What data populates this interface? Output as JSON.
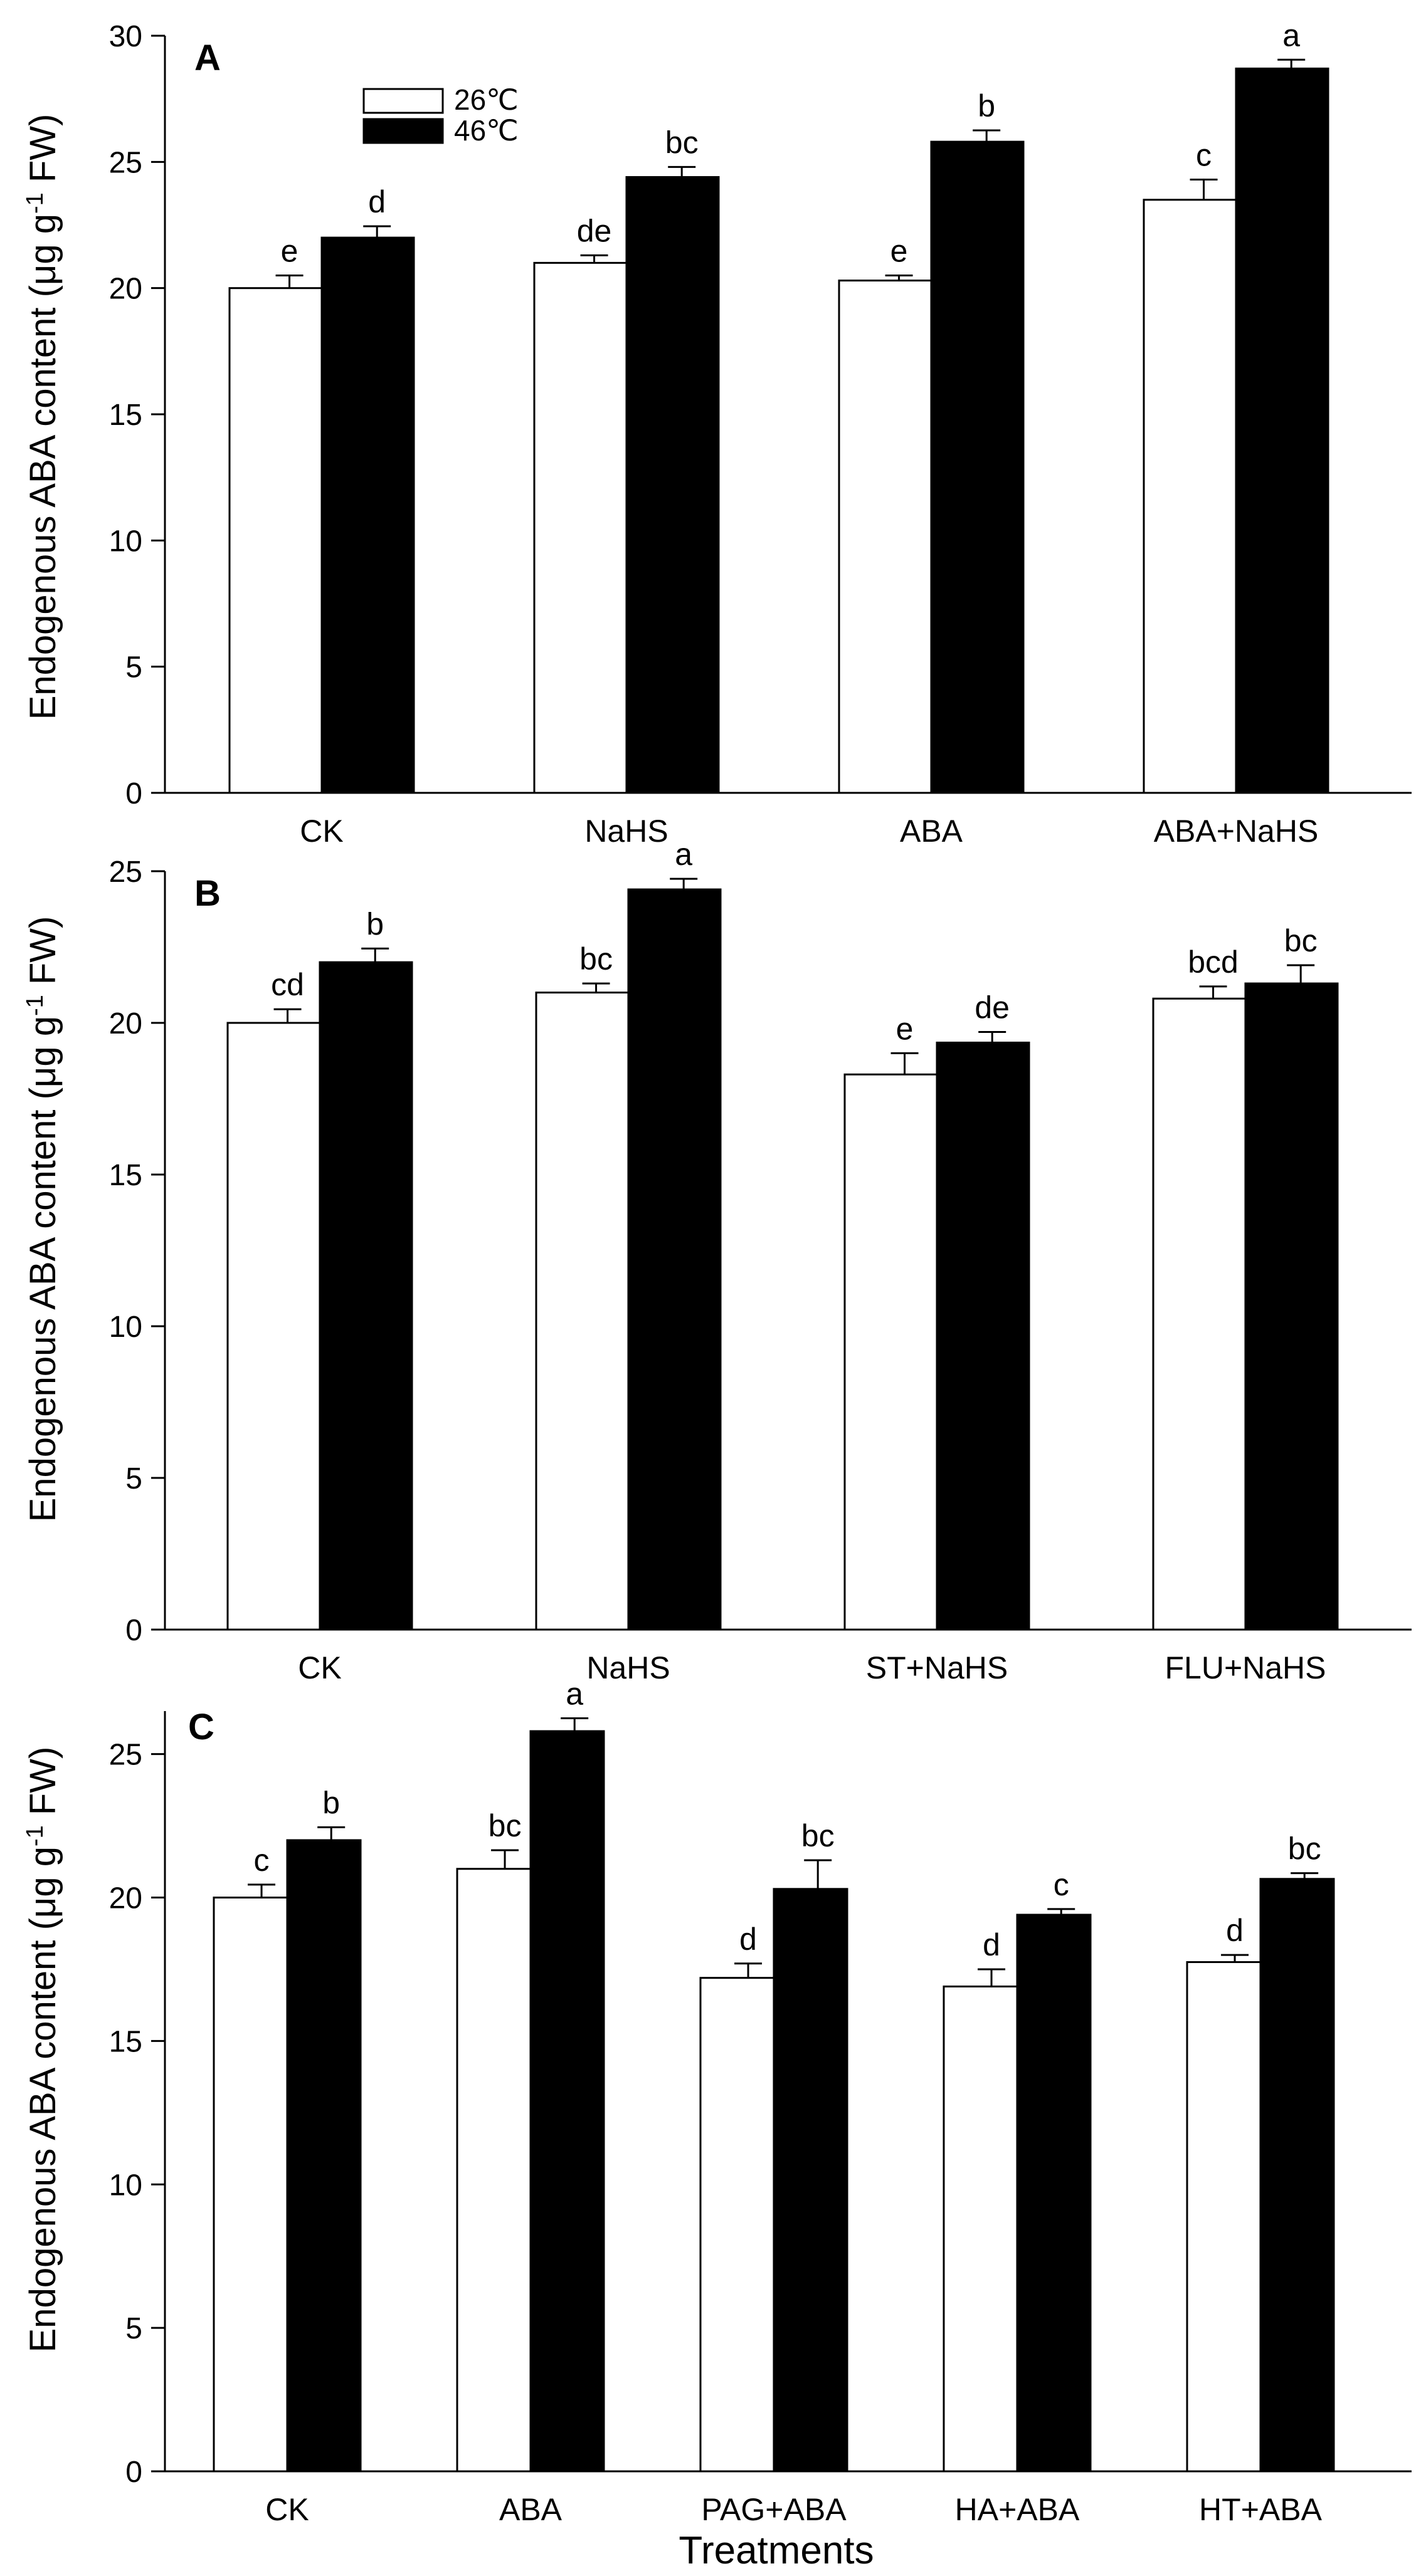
{
  "figure": {
    "xlabel": "Treatments",
    "legend": {
      "entries": [
        {
          "name": "26℃",
          "fill": "#ffffff"
        },
        {
          "name": "46℃",
          "fill": "#000000"
        }
      ],
      "placement": "top-left inside panel A"
    }
  },
  "chart_data": [
    {
      "type": "bar",
      "panel_label": "A",
      "title": "",
      "xlabel": "",
      "ylabel_prefix": "Endogenous ABA content (μg g",
      "ylabel_sup": "-1",
      "ylabel_suffix": " FW)",
      "ylim": [
        0,
        30
      ],
      "yticks": [
        0,
        5,
        10,
        15,
        20,
        25,
        30
      ],
      "categories": [
        "CK",
        "NaHS",
        "ABA",
        "ABA+NaHS"
      ],
      "series": [
        {
          "name": "26℃",
          "values": [
            20.0,
            21.0,
            20.3,
            23.5
          ],
          "errors": [
            0.5,
            0.3,
            0.2,
            0.8
          ],
          "letters": [
            "e",
            "de",
            "e",
            "c"
          ]
        },
        {
          "name": "46℃",
          "values": [
            22.0,
            24.4,
            25.8,
            28.7
          ],
          "errors": [
            0.45,
            0.4,
            0.45,
            0.35
          ],
          "letters": [
            "d",
            "bc",
            "b",
            "a"
          ]
        }
      ]
    },
    {
      "type": "bar",
      "panel_label": "B",
      "title": "",
      "xlabel": "",
      "ylabel_prefix": "Endogenous ABA content (μg g",
      "ylabel_sup": "-1",
      "ylabel_suffix": " FW)",
      "ylim": [
        0,
        25
      ],
      "yticks": [
        0,
        5,
        10,
        15,
        20,
        25
      ],
      "categories": [
        "CK",
        "NaHS",
        "ST+NaHS",
        "FLU+NaHS"
      ],
      "series": [
        {
          "name": "26℃",
          "values": [
            20.0,
            21.0,
            18.3,
            20.8
          ],
          "errors": [
            0.45,
            0.3,
            0.7,
            0.4
          ],
          "letters": [
            "cd",
            "bc",
            "e",
            "bcd"
          ]
        },
        {
          "name": "46℃",
          "values": [
            22.0,
            24.4,
            19.35,
            21.3
          ],
          "errors": [
            0.45,
            0.35,
            0.35,
            0.6
          ],
          "letters": [
            "b",
            "a",
            "de",
            "bc"
          ]
        }
      ]
    },
    {
      "type": "bar",
      "panel_label": "C",
      "title": "",
      "xlabel": "Treatments",
      "ylabel_prefix": "Endogenous ABA content (μg g",
      "ylabel_sup": "-1",
      "ylabel_suffix": " FW)",
      "ylim": [
        0,
        26.5
      ],
      "yticks": [
        0,
        5,
        10,
        15,
        20,
        25
      ],
      "categories": [
        "CK",
        "ABA",
        "PAG+ABA",
        "HA+ABA",
        "HT+ABA"
      ],
      "series": [
        {
          "name": "26℃",
          "values": [
            20.0,
            21.0,
            17.2,
            16.9,
            17.75
          ],
          "errors": [
            0.45,
            0.65,
            0.5,
            0.6,
            0.25
          ],
          "letters": [
            "c",
            "bc",
            "d",
            "d",
            "d"
          ]
        },
        {
          "name": "46℃",
          "values": [
            22.0,
            25.8,
            20.3,
            19.4,
            20.65
          ],
          "errors": [
            0.45,
            0.45,
            1.0,
            0.2,
            0.2
          ],
          "letters": [
            "b",
            "a",
            "bc",
            "c",
            "bc"
          ]
        }
      ]
    }
  ]
}
